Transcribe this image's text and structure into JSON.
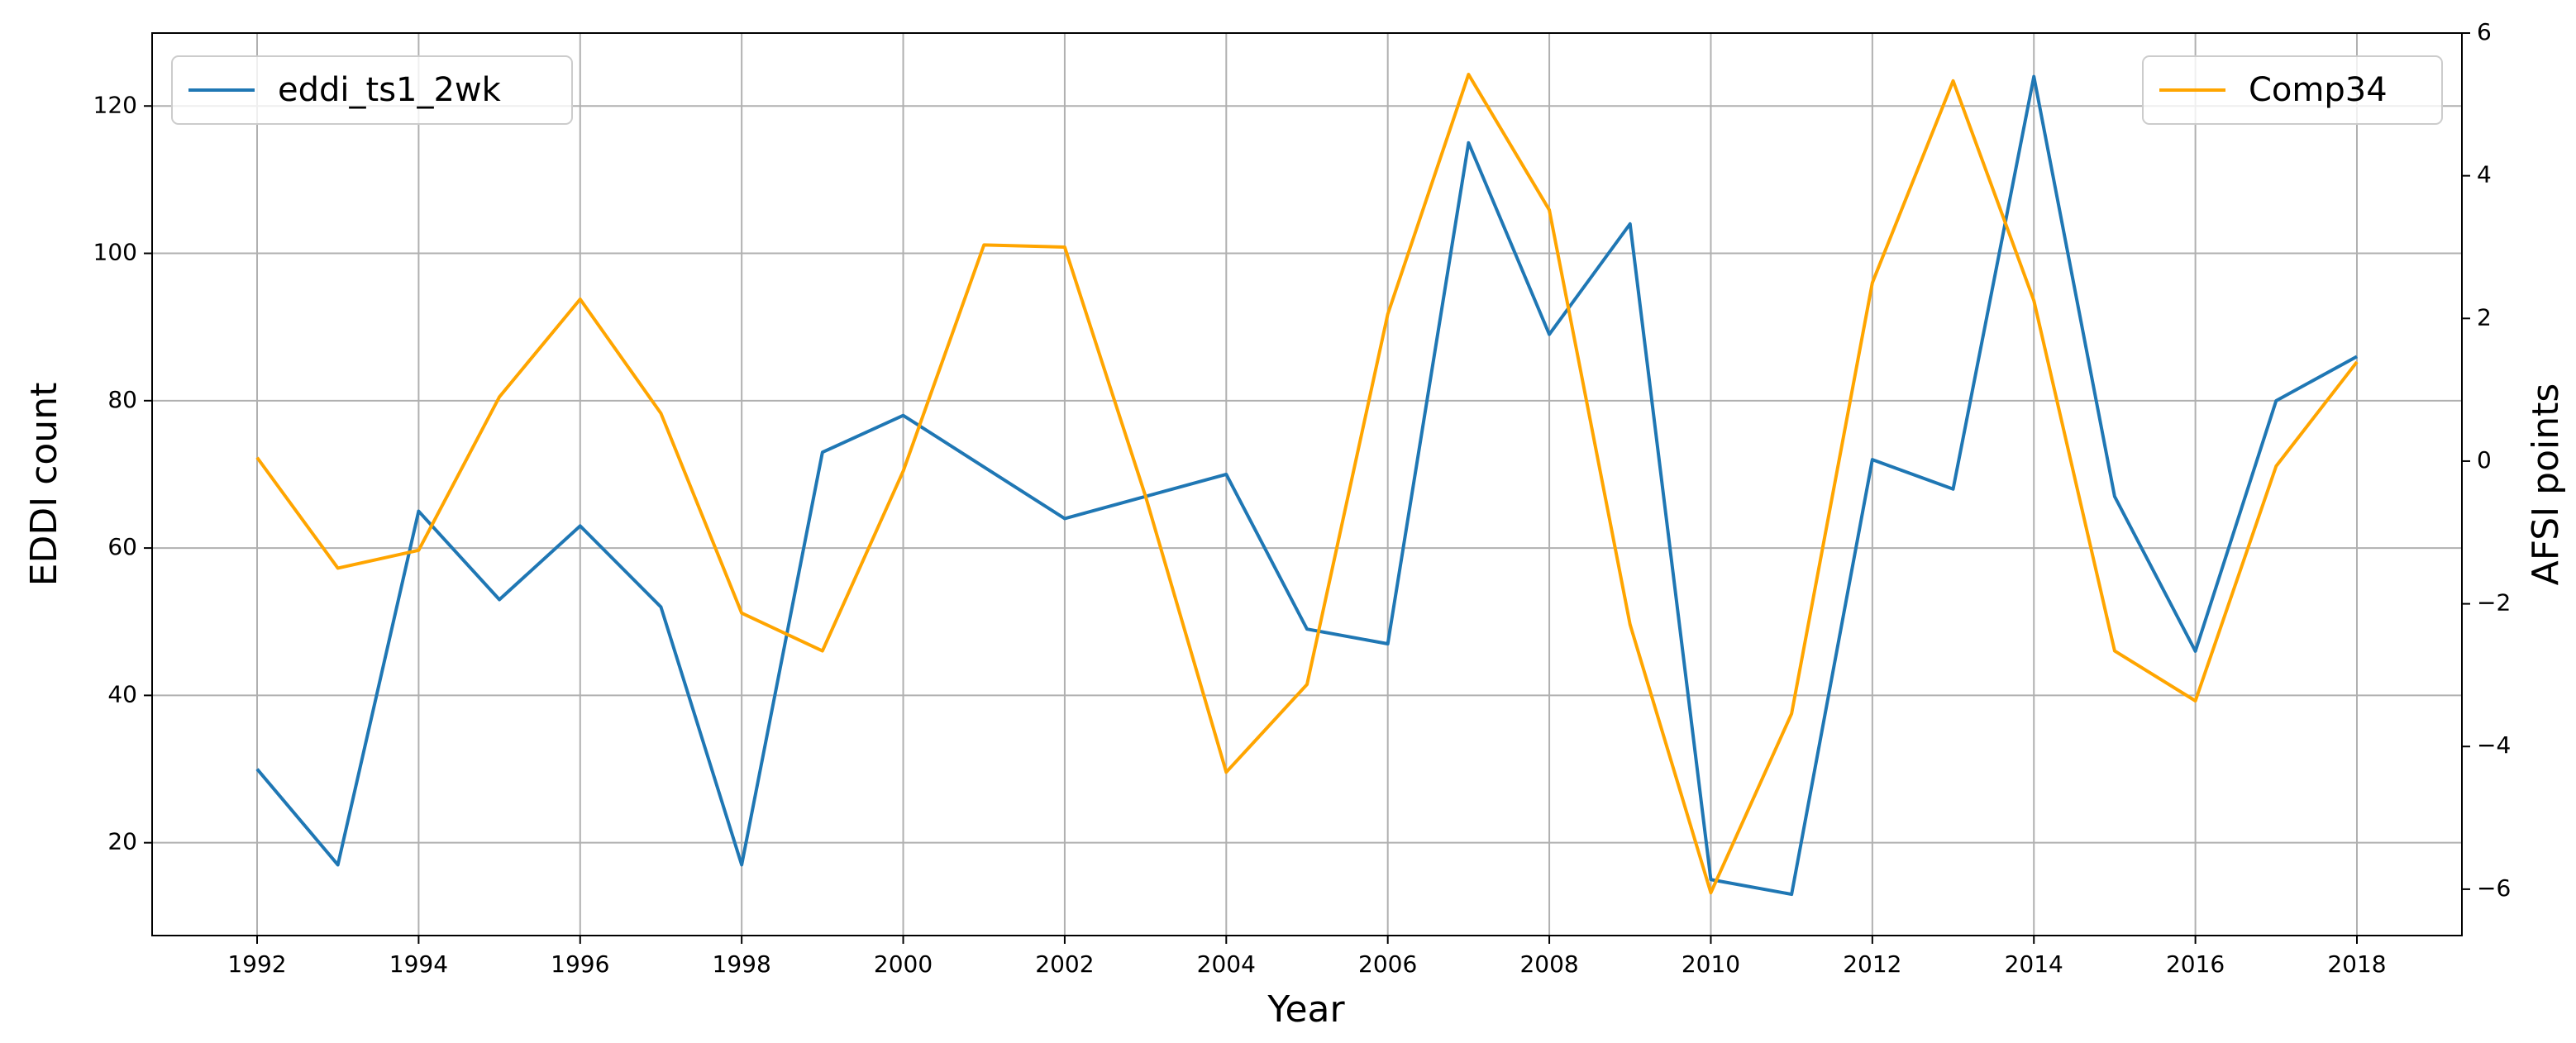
{
  "chart_data": {
    "type": "line",
    "x": [
      1992,
      1993,
      1994,
      1995,
      1996,
      1997,
      1998,
      1999,
      2000,
      2001,
      2002,
      2003,
      2004,
      2005,
      2006,
      2007,
      2008,
      2009,
      2010,
      2011,
      2012,
      2013,
      2014,
      2015,
      2016,
      2017,
      2018
    ],
    "series": [
      {
        "name": "eddi_ts1_2wk",
        "color": "#1f77b4",
        "values": [
          30,
          17,
          65,
          53,
          63,
          52,
          17,
          73,
          78,
          71,
          64,
          67,
          70,
          49,
          47,
          115,
          89,
          104,
          15,
          13,
          72,
          68,
          124,
          67,
          46,
          80,
          86
        ]
      },
      {
        "name": "Comp34",
        "color": "#ffa500",
        "axis": "y2",
        "values": [
          0.05,
          -1.5,
          -1.25,
          0.9,
          2.27,
          0.67,
          -2.13,
          -2.66,
          -0.14,
          3.03,
          3.0,
          -0.49,
          -4.36,
          -3.13,
          2.06,
          5.42,
          3.52,
          -2.29,
          -6.05,
          -3.54,
          2.5,
          5.33,
          2.25,
          -2.66,
          -3.36,
          -0.07,
          1.39
        ]
      }
    ],
    "x_label": "Year",
    "y_label": "EDDI count",
    "y2_label": "AFSI points",
    "xlim": [
      1990.7,
      2019.3
    ],
    "xticks": [
      1992,
      1994,
      1996,
      1998,
      2000,
      2002,
      2004,
      2006,
      2008,
      2010,
      2012,
      2014,
      2016,
      2018
    ],
    "ylim": [
      7.4,
      129.9
    ],
    "yticks": [
      20,
      40,
      60,
      80,
      100,
      120
    ],
    "y2lim": [
      -6.65,
      6
    ],
    "y2ticks": [
      {
        "value": -6,
        "label": "−6"
      },
      {
        "value": -4,
        "label": "−4"
      },
      {
        "value": -2,
        "label": "−2"
      },
      0,
      2,
      4,
      6
    ],
    "grid": true
  }
}
